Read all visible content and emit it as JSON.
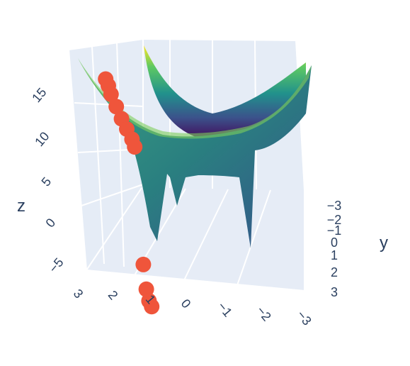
{
  "chart_data": {
    "type": "surface",
    "title": "",
    "axes": {
      "x": {
        "label": "",
        "ticks": [
          "3",
          "2",
          "1",
          "0",
          "−1",
          "−2",
          "−3"
        ],
        "range": [
          -3,
          3
        ]
      },
      "y": {
        "label": "y",
        "ticks": [
          "−3",
          "−2",
          "−1",
          "0",
          "1",
          "2",
          "3"
        ],
        "range": [
          -3,
          3
        ]
      },
      "z": {
        "label": "z",
        "ticks": [
          "15",
          "10",
          "5",
          "0",
          "−5"
        ],
        "range": [
          -7,
          19
        ]
      }
    },
    "surface": {
      "colorscale": "viridis",
      "colors": [
        "#440154",
        "#3b528b",
        "#21918c",
        "#5ec962",
        "#fde725"
      ],
      "description": "Parabolic trough surface z ≈ x² + y² with two deep wells dropping to about z = −6"
    },
    "scatter": {
      "color": "#ef553b",
      "points": [
        {
          "x": 3.0,
          "y": -0.4,
          "z": 17.5
        },
        {
          "x": 2.9,
          "y": -0.3,
          "z": 16.8
        },
        {
          "x": 2.8,
          "y": -0.2,
          "z": 15.9
        },
        {
          "x": 2.6,
          "y": -0.1,
          "z": 14.6
        },
        {
          "x": 2.4,
          "y": 0.0,
          "z": 13.3
        },
        {
          "x": 2.2,
          "y": 0.1,
          "z": 12.2
        },
        {
          "x": 2.0,
          "y": 0.2,
          "z": 11.1
        },
        {
          "x": 1.9,
          "y": 0.3,
          "z": 10.3
        },
        {
          "x": 1.6,
          "y": 1.0,
          "z": -1.5
        },
        {
          "x": 1.5,
          "y": 1.3,
          "z": -4.0
        },
        {
          "x": 1.4,
          "y": 1.4,
          "z": -5.2
        },
        {
          "x": 1.3,
          "y": 1.5,
          "z": -5.8
        }
      ]
    }
  }
}
